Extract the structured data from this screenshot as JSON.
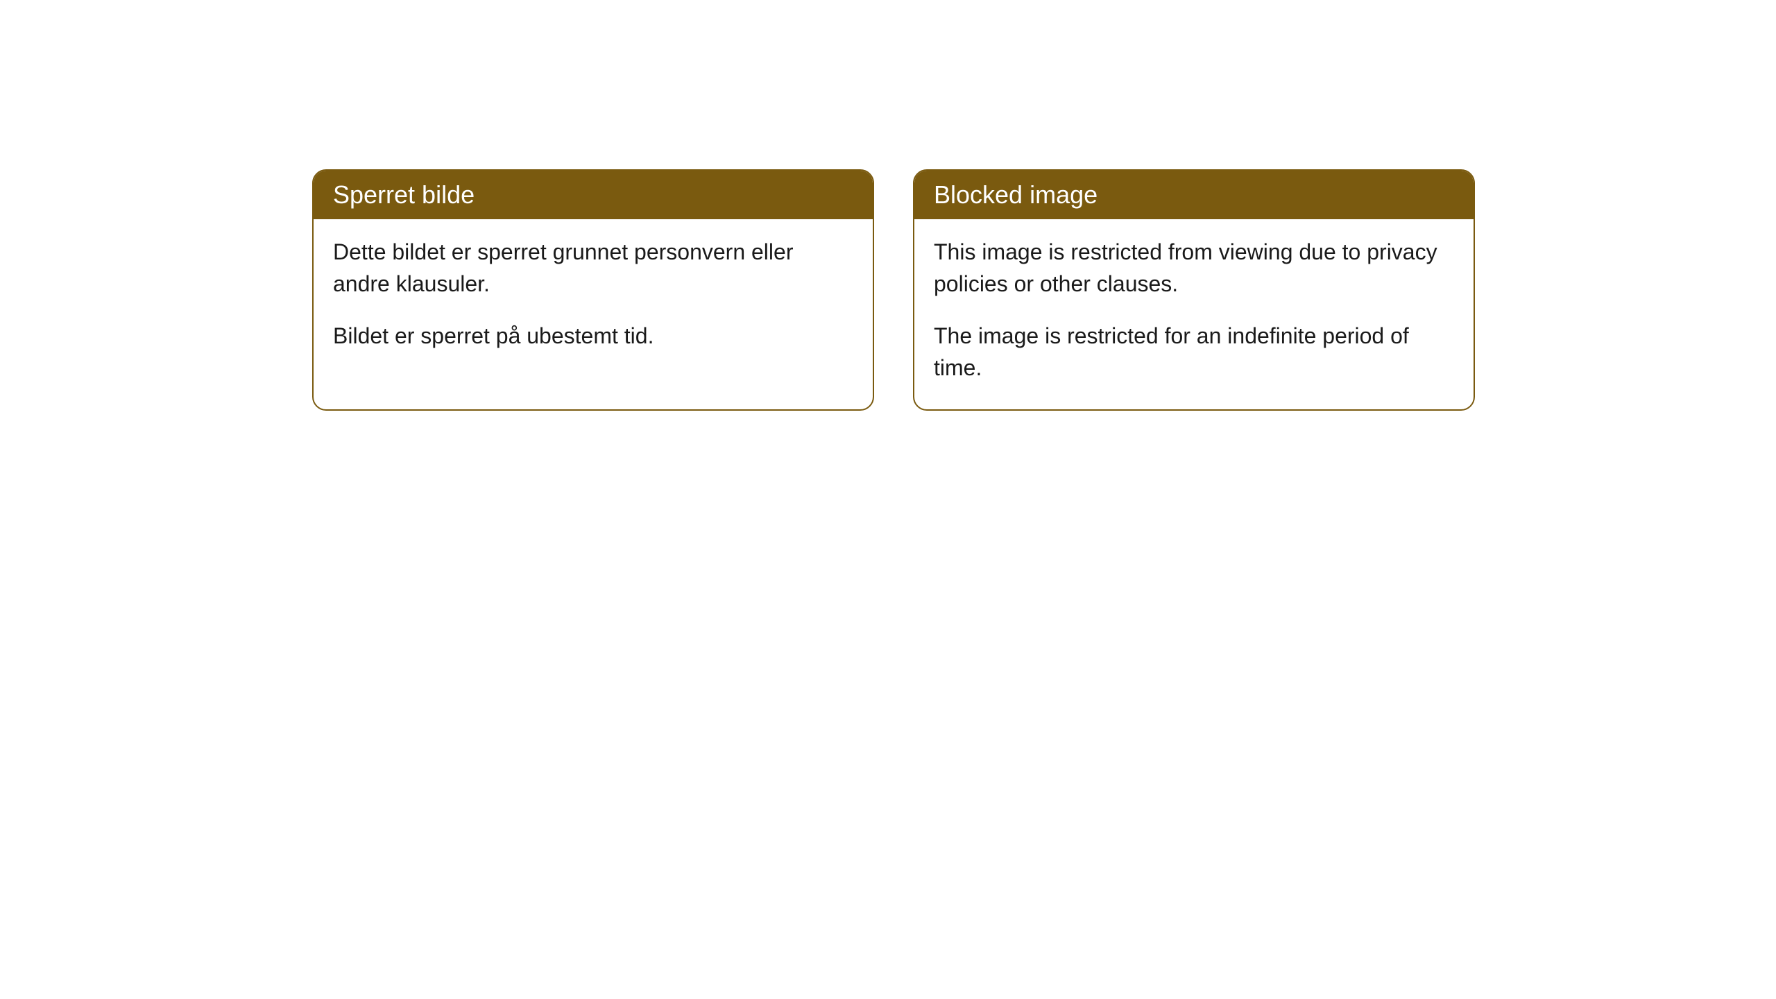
{
  "cards": [
    {
      "title": "Sperret bilde",
      "paragraph1": "Dette bildet er sperret grunnet personvern eller andre klausuler.",
      "paragraph2": "Bildet er sperret på ubestemt tid."
    },
    {
      "title": "Blocked image",
      "paragraph1": "This image is restricted from viewing due to privacy policies or other clauses.",
      "paragraph2": "The image is restricted for an indefinite period of time."
    }
  ],
  "styling": {
    "header_background": "#7a5a0f",
    "header_text_color": "#ffffff",
    "body_text_color": "#1a1a1a",
    "card_border_color": "#7a5a0f",
    "card_background": "#ffffff",
    "page_background": "#ffffff",
    "header_fontsize": 36,
    "body_fontsize": 32,
    "border_radius": 20,
    "border_width": 2
  }
}
